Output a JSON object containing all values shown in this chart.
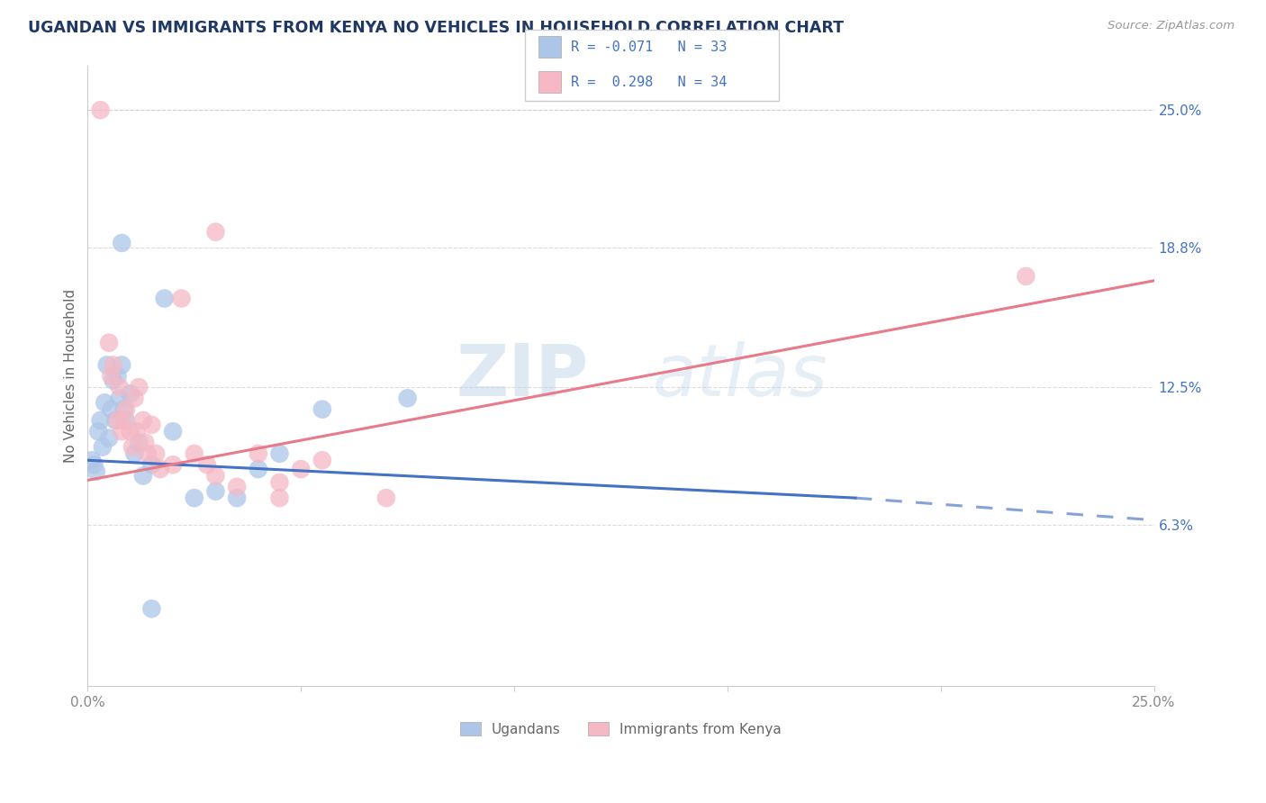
{
  "title": "UGANDAN VS IMMIGRANTS FROM KENYA NO VEHICLES IN HOUSEHOLD CORRELATION CHART",
  "source": "Source: ZipAtlas.com",
  "ylabel": "No Vehicles in Household",
  "xlim": [
    0.0,
    25.0
  ],
  "ylim": [
    -1.0,
    27.0
  ],
  "ytick_labels": [
    "6.3%",
    "12.5%",
    "18.8%",
    "25.0%"
  ],
  "ytick_values": [
    6.3,
    12.5,
    18.8,
    25.0
  ],
  "ugandan_color": "#adc6e8",
  "kenya_color": "#f5b8c4",
  "trend_blue_color": "#4472c4",
  "trend_pink_color": "#e87a8a",
  "watermark_color": "#c8ddf0",
  "background_color": "#ffffff",
  "grid_color": "#cccccc",
  "title_color": "#1f3864",
  "axis_label_color": "#666666",
  "tick_color": "#888888",
  "right_tick_color": "#4472c4",
  "legend_r1": "-0.071",
  "legend_n1": "33",
  "legend_r2": " 0.298",
  "legend_n2": "34",
  "blue_trend": [
    0.0,
    9.2,
    18.0,
    7.5
  ],
  "blue_dash_start": 18.0,
  "blue_dash_end": 25.0,
  "blue_dash_y_start": 7.5,
  "blue_dash_y_end": 6.5,
  "pink_trend": [
    0.0,
    8.3,
    25.0,
    17.3
  ],
  "ugandan_points": [
    [
      0.1,
      9.2
    ],
    [
      0.15,
      9.0
    ],
    [
      0.2,
      8.7
    ],
    [
      0.25,
      10.5
    ],
    [
      0.3,
      11.0
    ],
    [
      0.35,
      9.8
    ],
    [
      0.4,
      11.8
    ],
    [
      0.45,
      13.5
    ],
    [
      0.5,
      10.2
    ],
    [
      0.55,
      11.5
    ],
    [
      0.6,
      12.8
    ],
    [
      0.65,
      11.0
    ],
    [
      0.7,
      13.0
    ],
    [
      0.75,
      12.0
    ],
    [
      0.8,
      13.5
    ],
    [
      0.85,
      11.5
    ],
    [
      0.9,
      11.0
    ],
    [
      1.0,
      12.2
    ],
    [
      1.1,
      9.5
    ],
    [
      1.2,
      10.0
    ],
    [
      1.3,
      8.5
    ],
    [
      1.5,
      9.0
    ],
    [
      1.8,
      16.5
    ],
    [
      2.0,
      10.5
    ],
    [
      2.5,
      7.5
    ],
    [
      3.0,
      7.8
    ],
    [
      3.5,
      7.5
    ],
    [
      4.0,
      8.8
    ],
    [
      4.5,
      9.5
    ],
    [
      5.5,
      11.5
    ],
    [
      7.5,
      12.0
    ],
    [
      1.5,
      2.5
    ],
    [
      0.8,
      19.0
    ]
  ],
  "kenya_points": [
    [
      0.3,
      25.0
    ],
    [
      0.5,
      14.5
    ],
    [
      0.55,
      13.0
    ],
    [
      0.6,
      13.5
    ],
    [
      0.7,
      11.0
    ],
    [
      0.75,
      12.5
    ],
    [
      0.8,
      10.5
    ],
    [
      0.85,
      11.0
    ],
    [
      0.9,
      11.5
    ],
    [
      1.0,
      10.5
    ],
    [
      1.05,
      9.8
    ],
    [
      1.1,
      12.0
    ],
    [
      1.15,
      10.5
    ],
    [
      1.2,
      12.5
    ],
    [
      1.3,
      11.0
    ],
    [
      1.35,
      10.0
    ],
    [
      1.4,
      9.5
    ],
    [
      1.5,
      10.8
    ],
    [
      1.6,
      9.5
    ],
    [
      1.7,
      8.8
    ],
    [
      2.0,
      9.0
    ],
    [
      2.2,
      16.5
    ],
    [
      2.5,
      9.5
    ],
    [
      2.8,
      9.0
    ],
    [
      3.0,
      8.5
    ],
    [
      3.5,
      8.0
    ],
    [
      4.0,
      9.5
    ],
    [
      4.5,
      8.2
    ],
    [
      5.0,
      8.8
    ],
    [
      5.5,
      9.2
    ],
    [
      7.0,
      7.5
    ],
    [
      3.0,
      19.5
    ],
    [
      4.5,
      7.5
    ],
    [
      22.0,
      17.5
    ]
  ]
}
